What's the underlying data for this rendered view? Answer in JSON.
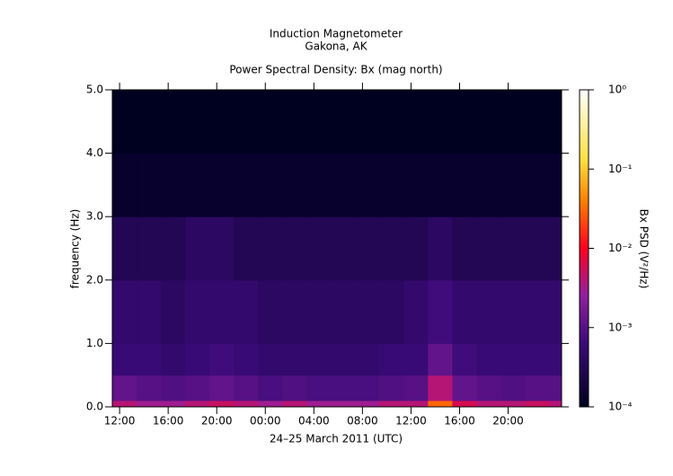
{
  "chart_data": {
    "type": "heatmap",
    "title": "Induction Magnetometer",
    "subtitle": "Gakona, AK",
    "plot_title": "Power Spectral Density: Bx (mag north)",
    "x_label": "24–25 March 2011 (UTC)",
    "y_label": "frequency (Hz)",
    "colorbar_label": "Bx PSD (V²/Hz)",
    "xlim": [
      11.4,
      48.4
    ],
    "xticks": [
      {
        "value": 12,
        "label": "12:00"
      },
      {
        "value": 16,
        "label": "16:00"
      },
      {
        "value": 20,
        "label": "20:00"
      },
      {
        "value": 24,
        "label": "00:00"
      },
      {
        "value": 28,
        "label": "04:00"
      },
      {
        "value": 32,
        "label": "08:00"
      },
      {
        "value": 36,
        "label": "12:00"
      },
      {
        "value": 40,
        "label": "16:00"
      },
      {
        "value": 44,
        "label": "20:00"
      }
    ],
    "ylim": [
      0,
      5
    ],
    "yticks": [
      {
        "value": 0,
        "label": "0.0"
      },
      {
        "value": 1,
        "label": "1.0"
      },
      {
        "value": 2,
        "label": "2.0"
      },
      {
        "value": 3,
        "label": "3.0"
      },
      {
        "value": 4,
        "label": "4.0"
      },
      {
        "value": 5,
        "label": "5.0"
      }
    ],
    "clim": [
      0.0001,
      1
    ],
    "color_scale": "log",
    "cticks": [
      {
        "value": 0.0001,
        "label": "10⁻⁴"
      },
      {
        "value": 0.001,
        "label": "10⁻³"
      },
      {
        "value": 0.01,
        "label": "10⁻²"
      },
      {
        "value": 0.1,
        "label": "10⁻¹"
      },
      {
        "value": 1,
        "label": "10⁰"
      }
    ],
    "xbins": [
      11.4,
      13.4,
      15.4,
      17.4,
      19.4,
      21.4,
      23.4,
      25.4,
      27.4,
      29.4,
      31.4,
      33.4,
      35.4,
      37.4,
      39.4,
      41.4,
      43.4,
      45.4,
      47.4,
      48.4
    ],
    "ybins": [
      0,
      0.1,
      0.5,
      1,
      2,
      3,
      4,
      5
    ],
    "values": [
      [
        0.004,
        0.003,
        0.003,
        0.004,
        0.005,
        0.004,
        0.003,
        0.004,
        0.003,
        0.003,
        0.003,
        0.004,
        0.004,
        0.03,
        0.006,
        0.004,
        0.004,
        0.005,
        0.004
      ],
      [
        0.0012,
        0.001,
        0.0009,
        0.001,
        0.0012,
        0.001,
        0.0008,
        0.0009,
        0.0008,
        0.0008,
        0.0008,
        0.0009,
        0.001,
        0.004,
        0.0012,
        0.001,
        0.0009,
        0.001,
        0.001
      ],
      [
        0.0006,
        0.0006,
        0.0005,
        0.0006,
        0.0007,
        0.0006,
        0.0005,
        0.0005,
        0.0005,
        0.0005,
        0.0005,
        0.0006,
        0.0006,
        0.0012,
        0.0007,
        0.0006,
        0.0006,
        0.0006,
        0.0006
      ],
      [
        0.0005,
        0.0005,
        0.0004,
        0.0005,
        0.0005,
        0.0005,
        0.0004,
        0.0004,
        0.0004,
        0.0004,
        0.0004,
        0.0004,
        0.0005,
        0.0007,
        0.0005,
        0.0005,
        0.0005,
        0.0005,
        0.0005
      ],
      [
        0.0003,
        0.0003,
        0.0003,
        0.0004,
        0.0004,
        0.0003,
        0.0003,
        0.0003,
        0.0003,
        0.0003,
        0.0003,
        0.0003,
        0.0003,
        0.0004,
        0.0003,
        0.0003,
        0.0003,
        0.0003,
        0.0003
      ],
      [
        0.00013,
        0.00013,
        0.00013,
        0.00013,
        0.00013,
        0.00013,
        0.00013,
        0.00013,
        0.00013,
        0.00013,
        0.00013,
        0.00013,
        0.00013,
        0.00013,
        0.00013,
        0.00013,
        0.00013,
        0.00013,
        0.00013
      ],
      [
        0.0001,
        0.0001,
        0.0001,
        0.0001,
        0.0001,
        0.0001,
        0.0001,
        0.0001,
        0.0001,
        0.0001,
        0.0001,
        0.0001,
        0.0001,
        0.0001,
        0.0001,
        0.0001,
        0.0001,
        0.0001,
        0.0001
      ]
    ]
  }
}
